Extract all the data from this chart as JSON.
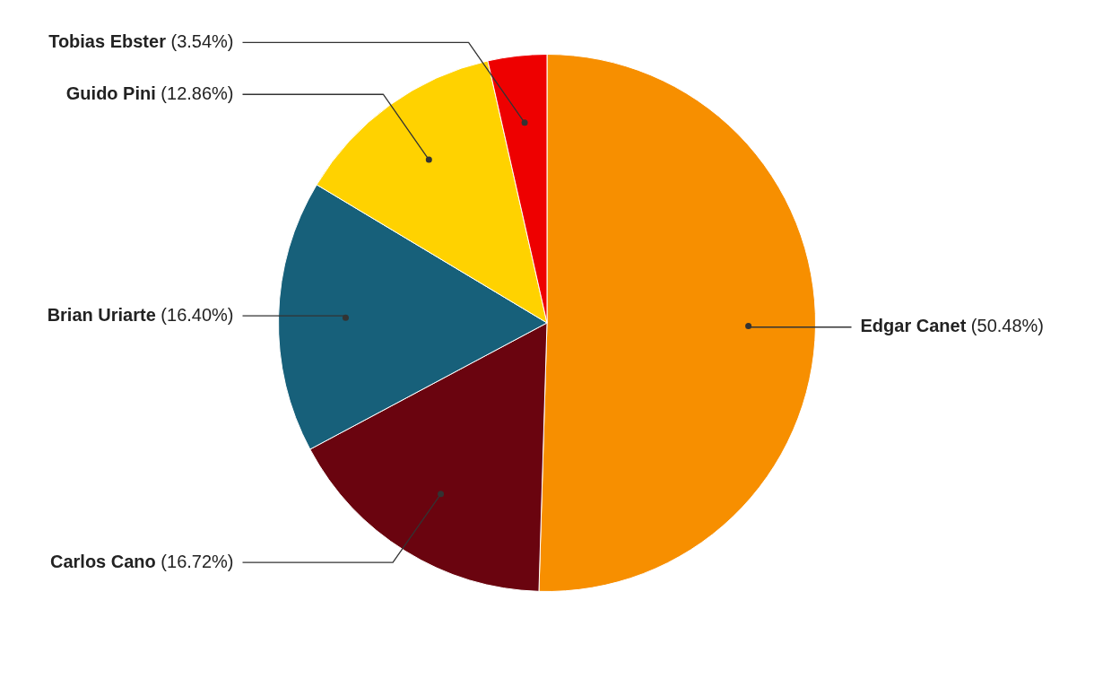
{
  "chart_data": {
    "type": "pie",
    "categories": [
      "Edgar Canet",
      "Carlos Cano",
      "Brian Uriarte",
      "Guido Pini",
      "Tobias Ebster"
    ],
    "values": [
      50.48,
      16.72,
      16.4,
      12.86,
      3.54
    ],
    "colors": [
      "#f78f00",
      "#6a040f",
      "#17607a",
      "#ffd200",
      "#ee0000"
    ],
    "value_labels": [
      "(50.48%)",
      "(16.72%)",
      "(16.40%)",
      "(12.86%)",
      "(3.54%)"
    ],
    "legend": false
  }
}
